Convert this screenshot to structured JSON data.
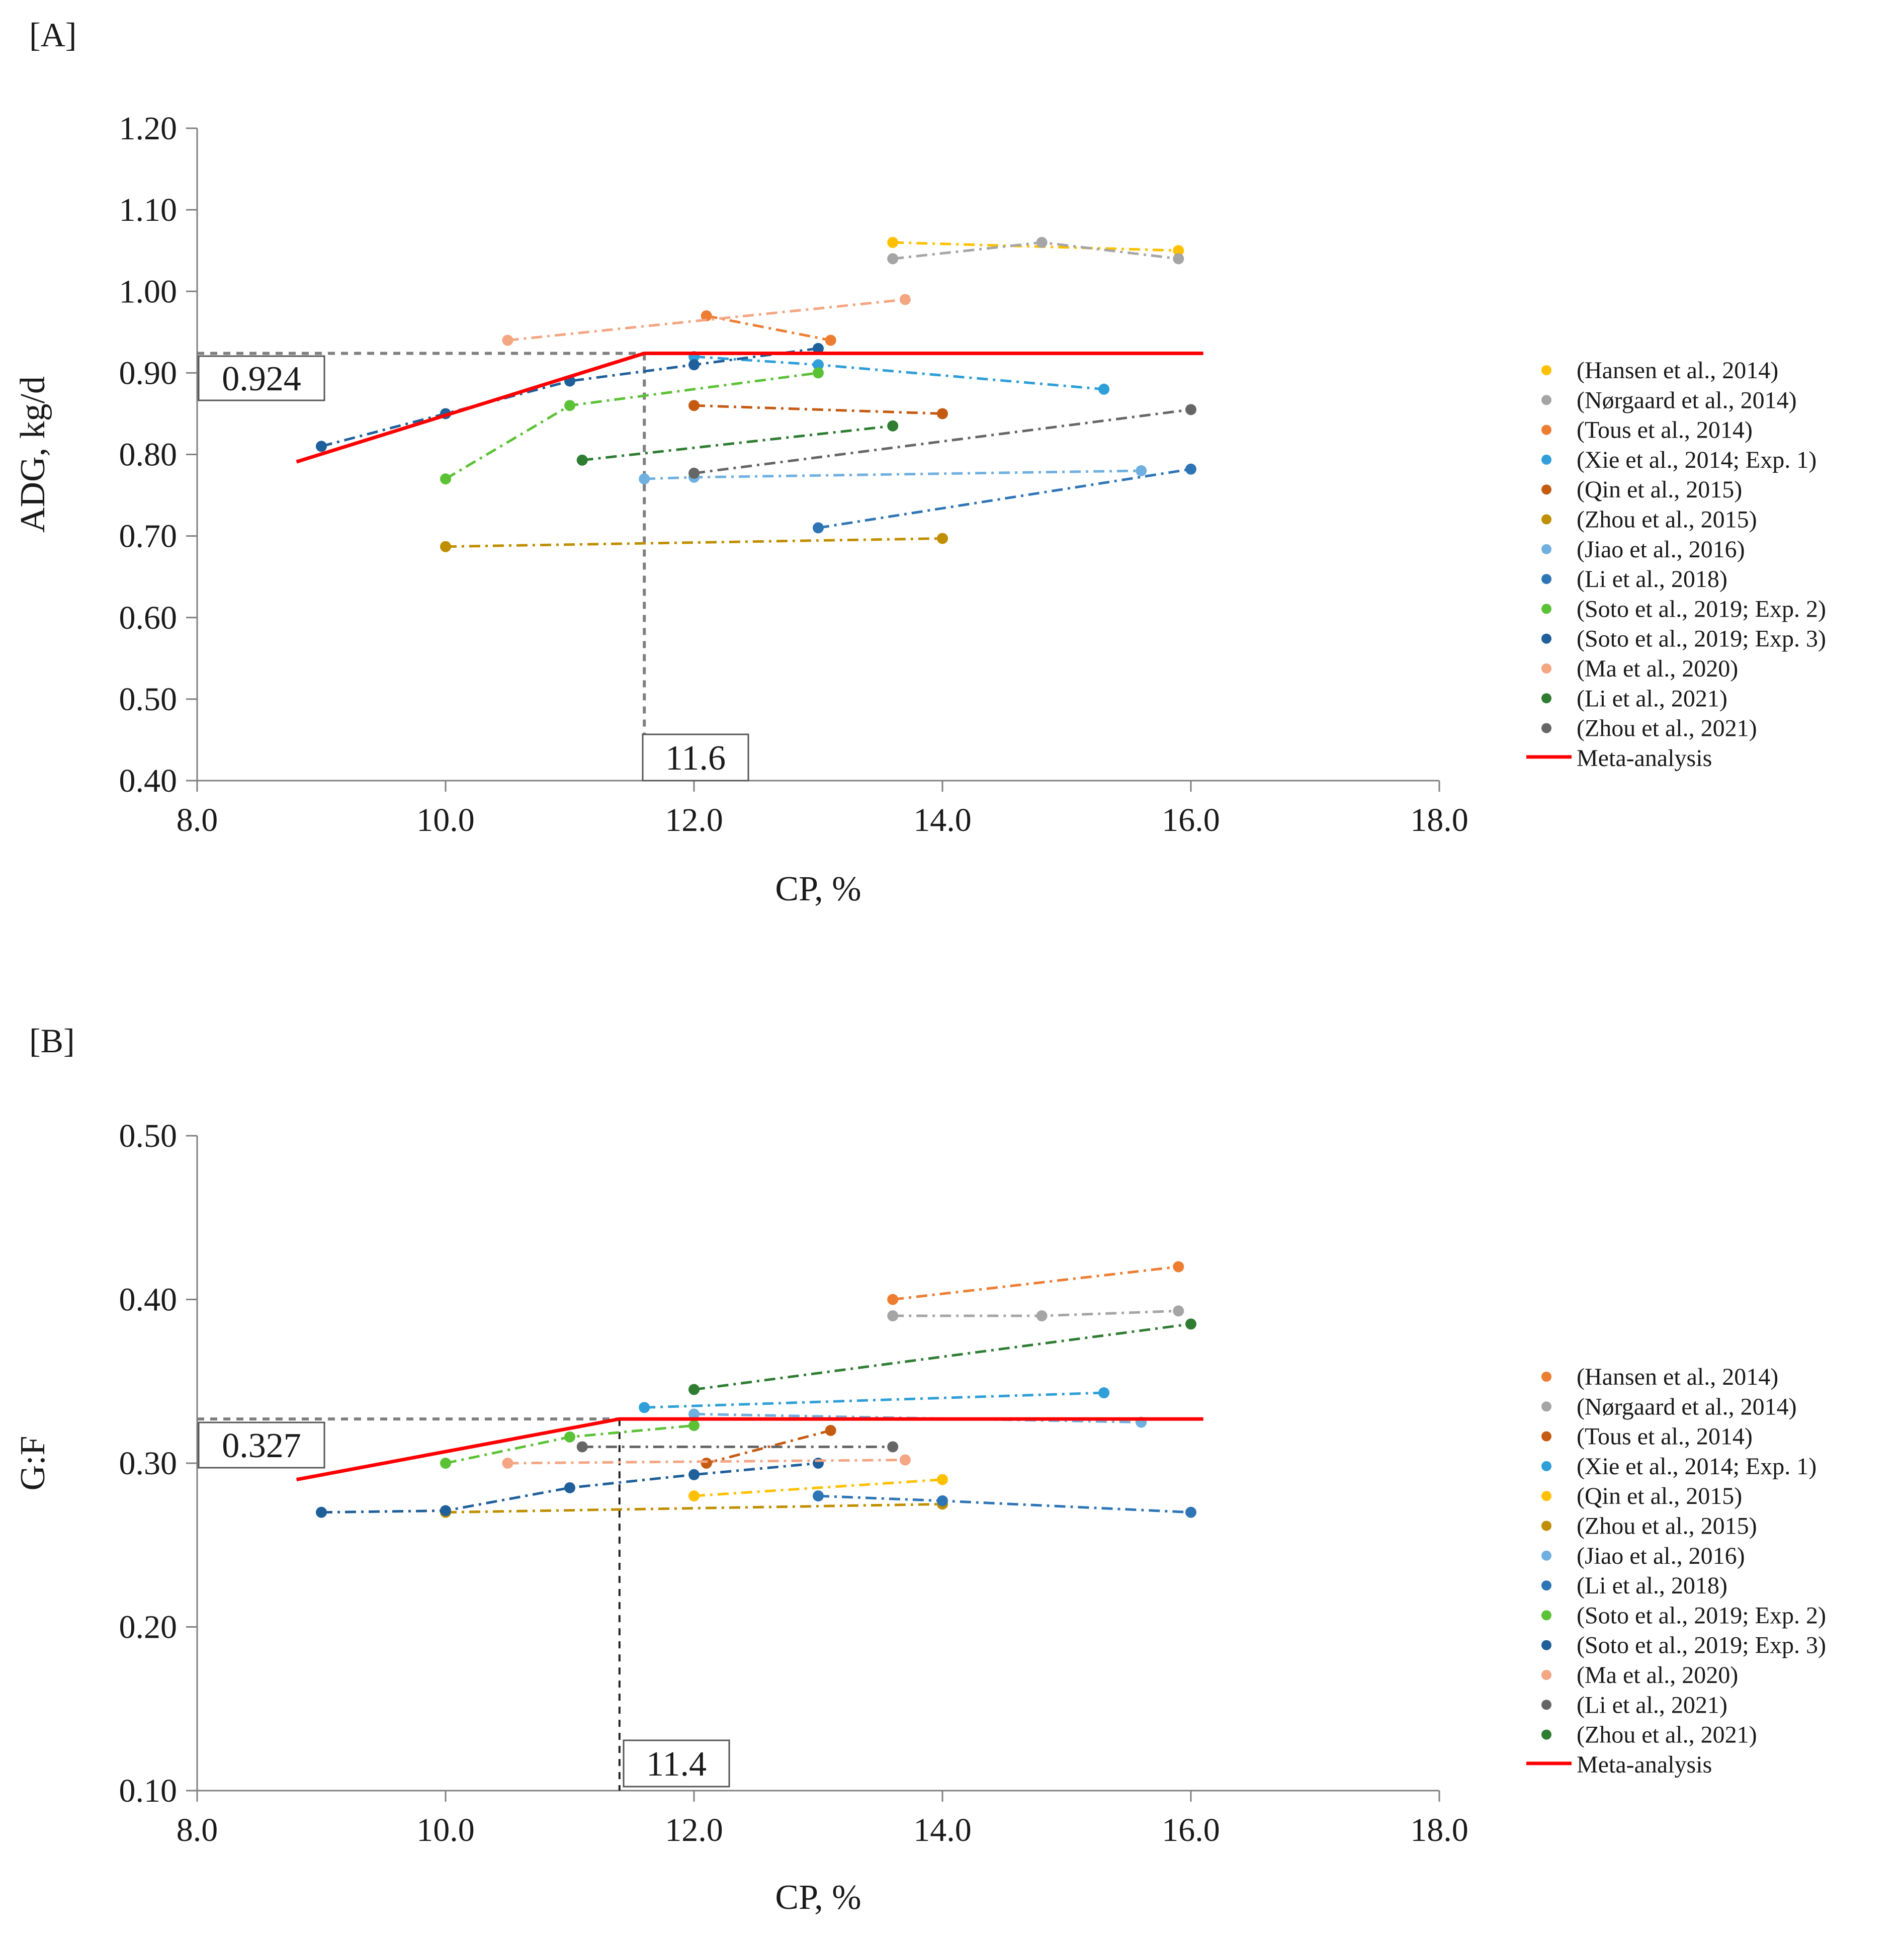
{
  "panels": [
    {
      "panel_label": "[A]",
      "breakpoint_x_label": "11.6",
      "breakpoint_y_label": "0.924"
    },
    {
      "panel_label": "[B]",
      "breakpoint_x_label": "11.4",
      "breakpoint_y_label": "0.327"
    }
  ],
  "chart_data": [
    {
      "type": "line",
      "title": "",
      "xlabel": "CP, %",
      "ylabel": "ADG, kg/d",
      "xlim": [
        8.0,
        18.0
      ],
      "ylim": [
        0.4,
        1.2
      ],
      "xticks": [
        "8.0",
        "10.0",
        "12.0",
        "14.0",
        "16.0",
        "18.0"
      ],
      "yticks": [
        "0.40",
        "0.50",
        "0.60",
        "0.70",
        "0.80",
        "0.90",
        "1.00",
        "1.10",
        "1.20"
      ],
      "grid": false,
      "legend_position": "right",
      "breakpoint": {
        "x": 11.6,
        "y": 0.924
      },
      "series": [
        {
          "name": "(Hansen et al., 2014)",
          "color": "#FFC000",
          "x": [
            13.6,
            15.9
          ],
          "y": [
            1.06,
            1.05
          ]
        },
        {
          "name": "(Nørgaard et al., 2014)",
          "color": "#A5A5A5",
          "x": [
            13.6,
            14.8,
            15.9
          ],
          "y": [
            1.04,
            1.06,
            1.04
          ]
        },
        {
          "name": "(Tous et al., 2014)",
          "color": "#ED7D31",
          "x": [
            12.1,
            13.1
          ],
          "y": [
            0.97,
            0.94
          ]
        },
        {
          "name": "(Xie et al., 2014; Exp. 1)",
          "color": "#2E9FD8",
          "x": [
            12.0,
            13.0,
            15.3
          ],
          "y": [
            0.92,
            0.91,
            0.88
          ]
        },
        {
          "name": "(Qin et al., 2015)",
          "color": "#C55A11",
          "x": [
            12.0,
            14.0
          ],
          "y": [
            0.86,
            0.85
          ]
        },
        {
          "name": "(Zhou et al., 2015)",
          "color": "#BF8F00",
          "x": [
            10.0,
            14.0
          ],
          "y": [
            0.687,
            0.697
          ]
        },
        {
          "name": "(Jiao et al., 2016)",
          "color": "#6FB0E0",
          "x": [
            11.6,
            12.0,
            15.6
          ],
          "y": [
            0.77,
            0.772,
            0.78
          ]
        },
        {
          "name": "(Li et al., 2018)",
          "color": "#2E75B6",
          "x": [
            13.0,
            16.0
          ],
          "y": [
            0.71,
            0.782
          ]
        },
        {
          "name": "(Soto et al., 2019; Exp. 2)",
          "color": "#5BC236",
          "x": [
            10.0,
            11.0,
            13.0
          ],
          "y": [
            0.77,
            0.86,
            0.9
          ]
        },
        {
          "name": "(Soto et al., 2019; Exp. 3)",
          "color": "#1F5F9A",
          "x": [
            9.0,
            10.0,
            11.0,
            12.0,
            13.0
          ],
          "y": [
            0.81,
            0.85,
            0.89,
            0.91,
            0.93
          ]
        },
        {
          "name": "(Ma et al., 2020)",
          "color": "#F4A582",
          "x": [
            10.5,
            13.7
          ],
          "y": [
            0.94,
            0.99
          ]
        },
        {
          "name": "(Li et al., 2021)",
          "color": "#2E7D32",
          "x": [
            11.1,
            13.6
          ],
          "y": [
            0.793,
            0.835
          ]
        },
        {
          "name": "(Zhou et al., 2021)",
          "color": "#666666",
          "x": [
            12.0,
            16.0
          ],
          "y": [
            0.777,
            0.855
          ]
        },
        {
          "name": "Meta-analysis",
          "color": "#FF0000",
          "x": [
            8.8,
            11.6,
            16.1
          ],
          "y": [
            0.791,
            0.924,
            0.924
          ]
        }
      ]
    },
    {
      "type": "line",
      "title": "",
      "xlabel": "CP, %",
      "ylabel": "G:F",
      "xlim": [
        8.0,
        18.0
      ],
      "ylim": [
        0.1,
        0.5
      ],
      "xticks": [
        "8.0",
        "10.0",
        "12.0",
        "14.0",
        "16.0",
        "18.0"
      ],
      "yticks": [
        "0.10",
        "0.20",
        "0.30",
        "0.40",
        "0.50"
      ],
      "grid": false,
      "legend_position": "right",
      "breakpoint": {
        "x": 11.4,
        "y": 0.327
      },
      "series": [
        {
          "name": "(Hansen et al., 2014)",
          "color": "#ED7D31",
          "x": [
            13.6,
            15.9
          ],
          "y": [
            0.4,
            0.42
          ]
        },
        {
          "name": "(Nørgaard et al., 2014)",
          "color": "#A5A5A5",
          "x": [
            13.6,
            14.8,
            15.9
          ],
          "y": [
            0.39,
            0.39,
            0.393
          ]
        },
        {
          "name": "(Tous et al., 2014)",
          "color": "#C55A11",
          "x": [
            12.1,
            13.1
          ],
          "y": [
            0.3,
            0.32
          ]
        },
        {
          "name": "(Xie et al., 2014; Exp. 1)",
          "color": "#2E9FD8",
          "x": [
            11.6,
            15.3
          ],
          "y": [
            0.334,
            0.343
          ]
        },
        {
          "name": "(Qin et al., 2015)",
          "color": "#FFC000",
          "x": [
            12.0,
            14.0
          ],
          "y": [
            0.28,
            0.29
          ]
        },
        {
          "name": "(Zhou et al., 2015)",
          "color": "#BF8F00",
          "x": [
            10.0,
            14.0
          ],
          "y": [
            0.27,
            0.275
          ]
        },
        {
          "name": "(Jiao et al., 2016)",
          "color": "#6FB0E0",
          "x": [
            12.0,
            15.6
          ],
          "y": [
            0.33,
            0.325
          ]
        },
        {
          "name": "(Li et al., 2018)",
          "color": "#2E75B6",
          "x": [
            13.0,
            14.0,
            16.0
          ],
          "y": [
            0.28,
            0.277,
            0.27
          ]
        },
        {
          "name": "(Soto et al., 2019; Exp. 2)",
          "color": "#5BC236",
          "x": [
            10.0,
            11.0,
            12.0
          ],
          "y": [
            0.3,
            0.316,
            0.323
          ]
        },
        {
          "name": "(Soto et al., 2019; Exp. 3)",
          "color": "#1F5F9A",
          "x": [
            9.0,
            10.0,
            11.0,
            12.0,
            13.0
          ],
          "y": [
            0.27,
            0.271,
            0.285,
            0.293,
            0.3
          ]
        },
        {
          "name": "(Ma et al., 2020)",
          "color": "#F4A582",
          "x": [
            10.5,
            13.7
          ],
          "y": [
            0.3,
            0.302
          ]
        },
        {
          "name": "(Li et al., 2021)",
          "color": "#666666",
          "x": [
            11.1,
            13.6
          ],
          "y": [
            0.31,
            0.31
          ]
        },
        {
          "name": "(Zhou et al., 2021)",
          "color": "#2E7D32",
          "x": [
            12.0,
            16.0
          ],
          "y": [
            0.345,
            0.385
          ]
        },
        {
          "name": "Meta-analysis",
          "color": "#FF0000",
          "x": [
            8.8,
            11.4,
            16.1
          ],
          "y": [
            0.29,
            0.327,
            0.327
          ]
        }
      ]
    }
  ]
}
